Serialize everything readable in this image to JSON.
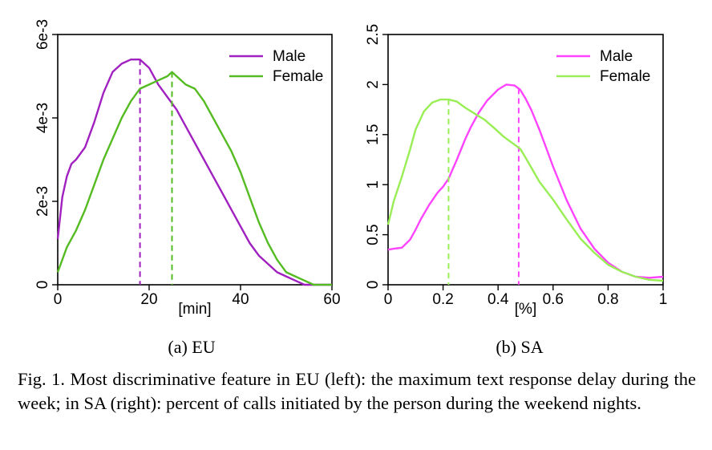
{
  "chart_data": [
    {
      "type": "line",
      "subcaption": "(a) EU",
      "xlabel": "[min]",
      "ylabel": "",
      "xlim": [
        0,
        60
      ],
      "ylim": [
        0,
        0.006
      ],
      "xticks": [
        0,
        20,
        40,
        60
      ],
      "yticks": [
        0,
        0.002,
        0.004,
        0.006
      ],
      "xtick_labels": [
        "0",
        "20",
        "40",
        "60"
      ],
      "ytick_labels": [
        "0",
        "2e-3",
        "4e-3",
        "6e-3"
      ],
      "legend_position": "top-right",
      "series": [
        {
          "name": "Male",
          "color": "#a020c0",
          "x": [
            0,
            1,
            2,
            3,
            4,
            6,
            8,
            10,
            12,
            14,
            16,
            18,
            20,
            22,
            24,
            26,
            28,
            30,
            32,
            34,
            36,
            38,
            40,
            42,
            44,
            46,
            48,
            50,
            52,
            54,
            56,
            58,
            60
          ],
          "y": [
            0.0011,
            0.0021,
            0.0026,
            0.0029,
            0.003,
            0.0033,
            0.0039,
            0.0046,
            0.0051,
            0.0053,
            0.0054,
            0.0054,
            0.0052,
            0.0048,
            0.0045,
            0.0042,
            0.0038,
            0.0034,
            0.003,
            0.0026,
            0.0022,
            0.0018,
            0.0014,
            0.001,
            0.0007,
            0.0005,
            0.0003,
            0.0002,
            0.0001,
            0.0,
            0.0,
            0.0,
            0.0
          ],
          "peak_x": 18
        },
        {
          "name": "Female",
          "color": "#55bb22",
          "x": [
            0,
            2,
            4,
            6,
            8,
            10,
            12,
            14,
            16,
            18,
            20,
            22,
            24,
            25,
            26,
            28,
            30,
            32,
            34,
            36,
            38,
            40,
            42,
            44,
            46,
            48,
            50,
            52,
            54,
            56,
            58,
            60
          ],
          "y": [
            0.0003,
            0.0009,
            0.0013,
            0.0018,
            0.0024,
            0.003,
            0.0035,
            0.004,
            0.0044,
            0.0047,
            0.0048,
            0.0049,
            0.005,
            0.0051,
            0.005,
            0.0048,
            0.0047,
            0.0044,
            0.004,
            0.0036,
            0.0032,
            0.0027,
            0.0021,
            0.0015,
            0.001,
            0.0006,
            0.0003,
            0.0002,
            0.0001,
            0.0,
            0.0,
            0.0
          ],
          "peak_x": 25
        }
      ]
    },
    {
      "type": "line",
      "subcaption": "(b) SA",
      "xlabel": "[%]",
      "ylabel": "",
      "xlim": [
        0,
        1
      ],
      "ylim": [
        0,
        2.5
      ],
      "xticks": [
        0,
        0.2,
        0.4,
        0.6,
        0.8,
        1
      ],
      "yticks": [
        0,
        0.5,
        1,
        1.5,
        2,
        2.5
      ],
      "xtick_labels": [
        "0",
        "0.2",
        "0.4",
        "0.6",
        "0.8",
        "1"
      ],
      "ytick_labels": [
        "0",
        "0.5",
        "1",
        "1.5",
        "2",
        "2.5"
      ],
      "legend_position": "top-right",
      "series": [
        {
          "name": "Male",
          "color": "#ff44ff",
          "x": [
            0,
            0.02,
            0.05,
            0.08,
            0.1,
            0.12,
            0.15,
            0.18,
            0.2,
            0.22,
            0.25,
            0.28,
            0.3,
            0.33,
            0.36,
            0.4,
            0.43,
            0.46,
            0.48,
            0.5,
            0.52,
            0.55,
            0.58,
            0.6,
            0.65,
            0.7,
            0.75,
            0.8,
            0.85,
            0.9,
            0.95,
            1.0
          ],
          "y": [
            0.35,
            0.36,
            0.37,
            0.45,
            0.55,
            0.66,
            0.8,
            0.92,
            0.98,
            1.06,
            1.25,
            1.45,
            1.57,
            1.72,
            1.84,
            1.95,
            2.0,
            1.99,
            1.95,
            1.86,
            1.75,
            1.55,
            1.33,
            1.18,
            0.84,
            0.56,
            0.36,
            0.22,
            0.13,
            0.08,
            0.07,
            0.08
          ],
          "peak_x": 0.475
        },
        {
          "name": "Female",
          "color": "#99ee55",
          "x": [
            0,
            0.02,
            0.05,
            0.08,
            0.1,
            0.13,
            0.16,
            0.19,
            0.22,
            0.25,
            0.28,
            0.32,
            0.35,
            0.38,
            0.42,
            0.45,
            0.48,
            0.5,
            0.55,
            0.6,
            0.65,
            0.7,
            0.75,
            0.8,
            0.85,
            0.9,
            0.95,
            1.0
          ],
          "y": [
            0.6,
            0.83,
            1.08,
            1.35,
            1.55,
            1.73,
            1.82,
            1.85,
            1.85,
            1.83,
            1.77,
            1.7,
            1.65,
            1.58,
            1.48,
            1.42,
            1.36,
            1.27,
            1.03,
            0.85,
            0.65,
            0.46,
            0.32,
            0.2,
            0.13,
            0.08,
            0.05,
            0.04
          ],
          "peak_x": 0.22
        }
      ]
    }
  ],
  "caption": "Fig. 1.  Most discriminative feature in EU (left): the maximum text response delay during the week; in SA (right): percent of calls initiated by the person during the weekend nights."
}
